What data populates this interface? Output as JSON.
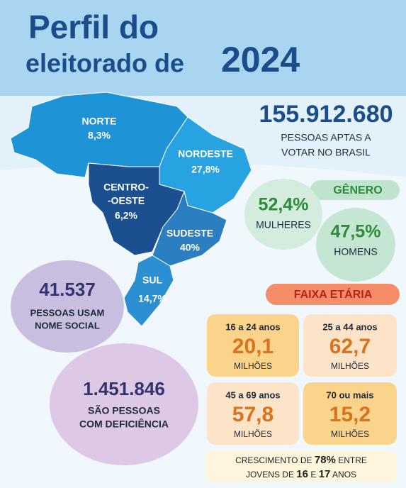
{
  "title": {
    "line1": "Perfil do",
    "line2": "eleitorado de",
    "year": "2024"
  },
  "voters": {
    "number": "155.912.680",
    "lines": [
      "PESSOAS APTAS A",
      "VOTAR NO BRASIL"
    ]
  },
  "regions": [
    {
      "name_lines": [
        "NORTE"
      ],
      "value": "8,3%"
    },
    {
      "name_lines": [
        "NORDESTE"
      ],
      "value": "27,8%"
    },
    {
      "name_lines": [
        "CENTRO-",
        "-OESTE"
      ],
      "value": "6,2%"
    },
    {
      "name_lines": [
        "SUDESTE"
      ],
      "value": "40%"
    },
    {
      "name_lines": [
        "SUL"
      ],
      "value": "14,7%"
    }
  ],
  "gender": {
    "title": "GÊNERO",
    "items": [
      {
        "value": "52,4%",
        "label": "MULHERES"
      },
      {
        "value": "47,5%",
        "label": "HOMENS"
      }
    ]
  },
  "social_name": {
    "number": "41.537",
    "lines": [
      "PESSOAS USAM",
      "NOME SOCIAL"
    ]
  },
  "disability": {
    "number": "1.451.846",
    "lines": [
      "SÃO PESSOAS",
      "COM DEFICIÊNCIA"
    ]
  },
  "age": {
    "title": "FAIXA ETÁRIA",
    "groups": [
      {
        "range": "16 a 24 anos",
        "value": "20,1",
        "unit": "MILHÕES"
      },
      {
        "range": "25 a 44 anos",
        "value": "62,7",
        "unit": "MILHÕES"
      },
      {
        "range": "45 a 69 anos",
        "value": "57,8",
        "unit": "MILHÕES"
      },
      {
        "range": "70 ou mais",
        "value": "15,2",
        "unit": "MILHÕES"
      }
    ]
  },
  "growth": {
    "parts": [
      "CRESCIMENTO DE",
      "78%",
      "ENTRE"
    ],
    "parts2": [
      "JOVENS DE",
      "16",
      "E",
      "17",
      "ANOS"
    ]
  }
}
